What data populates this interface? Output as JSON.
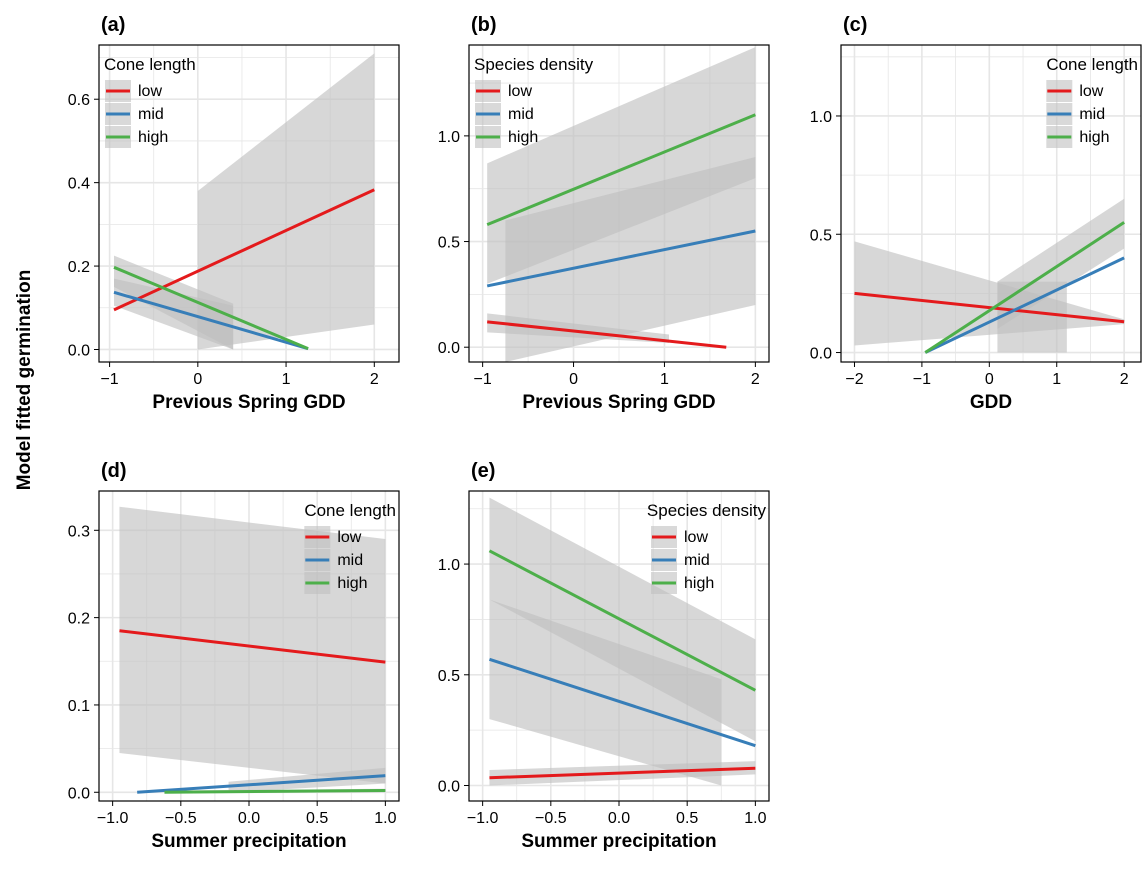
{
  "y_axis_title": "Model fitted germination",
  "colors": {
    "low": "#e41a1c",
    "mid": "#377eb8",
    "high": "#4daf4a",
    "band": "#bfbfbf",
    "grid": "#e6e6e6"
  },
  "chart_data": [
    {
      "type": "line",
      "panel_label": "(a)",
      "xlabel": "Previous Spring GDD",
      "xlim": [
        -1.12,
        2.28
      ],
      "ylim": [
        -0.03,
        0.73
      ],
      "xticks": [
        -1,
        0,
        1,
        2
      ],
      "xtick_labels": [
        "−1",
        "0",
        "1",
        "2"
      ],
      "yticks": [
        0,
        0.2,
        0.4,
        0.6
      ],
      "ytick_labels": [
        "0.0",
        "0.2",
        "0.4",
        "0.6"
      ],
      "legend_title": "Cone length",
      "legend_position": "top-left",
      "series": [
        {
          "name": "low",
          "color": "#e41a1c",
          "x": [
            -0.95,
            2.0
          ],
          "y": [
            0.095,
            0.383
          ],
          "band_x": [
            0.0,
            2.0
          ],
          "band_lo": [
            0.0,
            0.06
          ],
          "band_hi": [
            0.38,
            0.71
          ]
        },
        {
          "name": "mid",
          "color": "#377eb8",
          "x": [
            -0.95,
            1.25
          ],
          "y": [
            0.137,
            0.002
          ],
          "band_x": [
            -0.95,
            0.4
          ],
          "band_lo": [
            0.105,
            0.0
          ],
          "band_hi": [
            0.17,
            0.105
          ]
        },
        {
          "name": "high",
          "color": "#4daf4a",
          "x": [
            -0.95,
            1.25
          ],
          "y": [
            0.197,
            0.002
          ],
          "band_x": [
            -0.95,
            0.4
          ],
          "band_lo": [
            0.15,
            0.0
          ],
          "band_hi": [
            0.225,
            0.11
          ]
        }
      ]
    },
    {
      "type": "line",
      "panel_label": "(b)",
      "xlabel": "Previous Spring GDD",
      "xlim": [
        -1.15,
        2.15
      ],
      "ylim": [
        -0.07,
        1.43
      ],
      "xticks": [
        -1,
        0,
        1,
        2
      ],
      "xtick_labels": [
        "−1",
        "0",
        "1",
        "2"
      ],
      "yticks": [
        0,
        0.5,
        1.0
      ],
      "ytick_labels": [
        "0.0",
        "0.5",
        "1.0"
      ],
      "legend_title": "Species density",
      "legend_position": "top-left",
      "series": [
        {
          "name": "low",
          "color": "#e41a1c",
          "x": [
            -0.95,
            1.68
          ],
          "y": [
            0.12,
            0.0
          ],
          "band_x": [
            -0.95,
            1.05
          ],
          "band_lo": [
            0.07,
            0.02
          ],
          "band_hi": [
            0.16,
            0.06
          ]
        },
        {
          "name": "mid",
          "color": "#377eb8",
          "x": [
            -0.95,
            2.0
          ],
          "y": [
            0.29,
            0.55
          ],
          "band_x": [
            -0.75,
            2.0
          ],
          "band_lo": [
            -0.07,
            0.2
          ],
          "band_hi": [
            0.6,
            0.9
          ]
        },
        {
          "name": "high",
          "color": "#4daf4a",
          "x": [
            -0.95,
            2.0
          ],
          "y": [
            0.58,
            1.1
          ],
          "band_x": [
            -0.95,
            2.0
          ],
          "band_lo": [
            0.3,
            0.8
          ],
          "band_hi": [
            0.87,
            1.42
          ]
        }
      ]
    },
    {
      "type": "line",
      "panel_label": "(c)",
      "xlabel": "GDD",
      "xlim": [
        -2.2,
        2.25
      ],
      "ylim": [
        -0.04,
        1.3
      ],
      "xticks": [
        -2,
        -1,
        0,
        1,
        2
      ],
      "xtick_labels": [
        "−2",
        "−1",
        "0",
        "1",
        "2"
      ],
      "yticks": [
        0,
        0.5,
        1.0
      ],
      "ytick_labels": [
        "0.0",
        "0.5",
        "1.0"
      ],
      "legend_title": "Cone length",
      "legend_position": "top-right",
      "series": [
        {
          "name": "low",
          "color": "#e41a1c",
          "x": [
            -2.0,
            2.0
          ],
          "y": [
            0.25,
            0.13
          ],
          "band_x": [
            -2.0,
            2.0
          ],
          "band_lo": [
            0.03,
            0.12
          ],
          "band_hi": [
            0.47,
            0.14
          ]
        },
        {
          "name": "mid",
          "color": "#377eb8",
          "x": [
            -0.95,
            2.0
          ],
          "y": [
            0.0,
            0.4
          ],
          "band_x": [
            0.12,
            1.15
          ],
          "band_lo": [
            0.0,
            0.0
          ],
          "band_hi": [
            0.3,
            0.3
          ]
        },
        {
          "name": "high",
          "color": "#4daf4a",
          "x": [
            -0.95,
            2.0
          ],
          "y": [
            0.0,
            0.55
          ],
          "band_x": [
            0.12,
            2.0
          ],
          "band_lo": [
            0.1,
            0.44
          ],
          "band_hi": [
            0.3,
            0.65
          ]
        }
      ]
    },
    {
      "type": "line",
      "panel_label": "(d)",
      "xlabel": "Summer precipitation",
      "xlim": [
        -1.1,
        1.1
      ],
      "ylim": [
        -0.01,
        0.345
      ],
      "xticks": [
        -1.0,
        -0.5,
        0.0,
        0.5,
        1.0
      ],
      "xtick_labels": [
        "−1.0",
        "−0.5",
        "0.0",
        "0.5",
        "1.0"
      ],
      "yticks": [
        0,
        0.1,
        0.2,
        0.3
      ],
      "ytick_labels": [
        "0.0",
        "0.1",
        "0.2",
        "0.3"
      ],
      "legend_title": "Cone length",
      "legend_position": "top-right",
      "series": [
        {
          "name": "low",
          "color": "#e41a1c",
          "x": [
            -0.95,
            1.0
          ],
          "y": [
            0.185,
            0.149
          ],
          "band_x": [
            -0.95,
            1.0
          ],
          "band_lo": [
            0.045,
            0.01
          ],
          "band_hi": [
            0.327,
            0.29
          ]
        },
        {
          "name": "mid",
          "color": "#377eb8",
          "x": [
            -0.82,
            1.0
          ],
          "y": [
            0.0,
            0.019
          ],
          "band_x": [
            -0.15,
            1.0
          ],
          "band_lo": [
            0.0,
            0.01
          ],
          "band_hi": [
            0.012,
            0.028
          ]
        },
        {
          "name": "high",
          "color": "#4daf4a",
          "x": [
            -0.62,
            1.0
          ],
          "y": [
            0.0,
            0.002
          ],
          "band_x": [
            -0.62,
            1.0
          ],
          "band_lo": [
            -0.001,
            0.0
          ],
          "band_hi": [
            0.002,
            0.004
          ]
        }
      ]
    },
    {
      "type": "line",
      "panel_label": "(e)",
      "xlabel": "Summer precipitation",
      "xlim": [
        -1.1,
        1.1
      ],
      "ylim": [
        -0.07,
        1.33
      ],
      "xticks": [
        -1.0,
        -0.5,
        0.0,
        0.5,
        1.0
      ],
      "xtick_labels": [
        "−1.0",
        "−0.5",
        "0.0",
        "0.5",
        "1.0"
      ],
      "yticks": [
        0,
        0.5,
        1.0
      ],
      "ytick_labels": [
        "0.0",
        "0.5",
        "1.0"
      ],
      "legend_title": "Species density",
      "legend_position": "top-right",
      "series": [
        {
          "name": "low",
          "color": "#e41a1c",
          "x": [
            -0.95,
            1.0
          ],
          "y": [
            0.035,
            0.078
          ],
          "band_x": [
            -0.95,
            1.0
          ],
          "band_lo": [
            0.0,
            0.05
          ],
          "band_hi": [
            0.07,
            0.11
          ]
        },
        {
          "name": "mid",
          "color": "#377eb8",
          "x": [
            -0.95,
            1.0
          ],
          "y": [
            0.57,
            0.18
          ],
          "band_x": [
            -0.95,
            0.75
          ],
          "band_lo": [
            0.3,
            0.0
          ],
          "band_hi": [
            0.84,
            0.48
          ]
        },
        {
          "name": "high",
          "color": "#4daf4a",
          "x": [
            -0.95,
            1.0
          ],
          "y": [
            1.06,
            0.43
          ],
          "band_x": [
            -0.95,
            1.0
          ],
          "band_lo": [
            0.84,
            0.2
          ],
          "band_hi": [
            1.3,
            0.66
          ]
        }
      ]
    }
  ]
}
